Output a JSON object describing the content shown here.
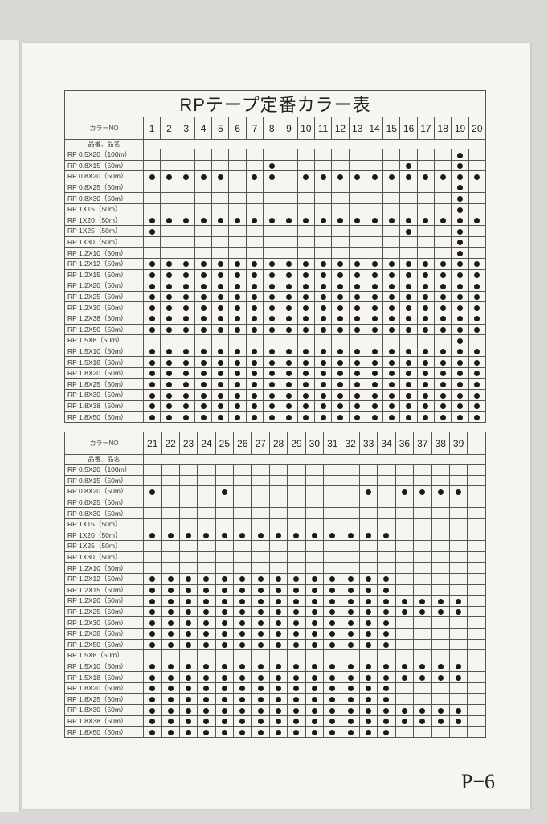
{
  "title": "RPテープ定番カラー表",
  "page_number": "P−6",
  "color_no_label": "カラーNO",
  "product_label": "品番、品名",
  "dot_symbol": "●",
  "products": [
    "RP 0.5X20（100m）",
    "RP 0.8X15（50m）",
    "RP 0.8X20（50m）",
    "RP 0.8X25（50m）",
    "RP 0.8X30（50m）",
    "RP 1X15（50m）",
    "RP 1X20（50m）",
    "RP 1X25（50m）",
    "RP 1X30（50m）",
    "RP 1.2X10（50m）",
    "RP 1.2X12（50m）",
    "RP 1.2X15（50m）",
    "RP 1.2X20（50m）",
    "RP 1.2X25（50m）",
    "RP 1.2X30（50m）",
    "RP 1.2X38（50m）",
    "RP 1.2X50（50m）",
    "RP 1.5X8（50m）",
    "RP 1.5X10（50m）",
    "RP 1.5X18（50m）",
    "RP 1.8X20（50m）",
    "RP 1.8X25（50m）",
    "RP 1.8X30（50m）",
    "RP 1.8X38（50m）",
    "RP 1.8X50（50m）"
  ],
  "table1": {
    "colors": [
      "1",
      "2",
      "3",
      "4",
      "5",
      "6",
      "7",
      "8",
      "9",
      "10",
      "11",
      "12",
      "13",
      "14",
      "15",
      "16",
      "17",
      "18",
      "19",
      "20"
    ],
    "availability": [
      "00000000000000000010",
      "00000001000000010010",
      "11111011011111111111",
      "00000000000000000010",
      "00000000000000000010",
      "00000000000000000010",
      "11111111111111111111",
      "10000000000000010010",
      "00000000000000000010",
      "00000000000000000010",
      "11111111111111111111",
      "11111111111111111111",
      "11111111111111111111",
      "11111111111111111111",
      "11111111111111111111",
      "11111111111111111111",
      "11111111111111111111",
      "00000000000000000010",
      "11111111111111111111",
      "11111111111111111111",
      "11111111111111111111",
      "11111111111111111111",
      "11111111111111111111",
      "11111111111111111111",
      "11111111111111111111"
    ]
  },
  "table2": {
    "colors": [
      "21",
      "22",
      "23",
      "24",
      "25",
      "26",
      "27",
      "28",
      "29",
      "30",
      "31",
      "32",
      "33",
      "34",
      "36",
      "37",
      "38",
      "39",
      ""
    ],
    "availability": [
      "0000000000000000000",
      "0000000000000000000",
      "1000100000001011110",
      "0000000000000000000",
      "0000000000000000000",
      "0000000000000000000",
      "1111111111111100000",
      "0000000000000000000",
      "0000000000000000000",
      "0000000000000000000",
      "1111111111111100000",
      "1111111111111100000",
      "1111111111111111110",
      "1111111111111111110",
      "1111111111111100000",
      "1111111111111100000",
      "1111111111111100000",
      "0000000000000000000",
      "1111111111111111110",
      "1111111111111111110",
      "1111111111111100000",
      "1111111111111100000",
      "1111111111111111110",
      "1111111111111111110",
      "1111111111111100000"
    ]
  }
}
